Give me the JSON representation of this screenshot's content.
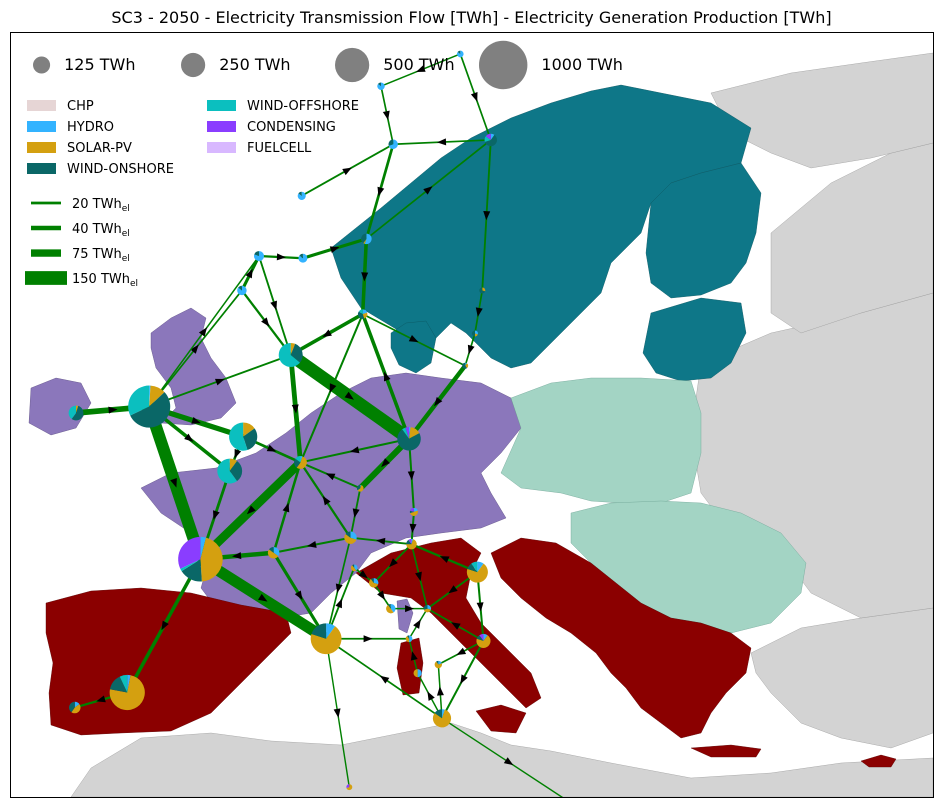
{
  "title": "SC3 - 2050 - Electricity Transmission Flow [TWh] - Electricity Generation Production [TWh]",
  "colors": {
    "sea": "#ffffff",
    "other_land": "#d3d3d3",
    "region_nordic": "#0e7788",
    "region_west": "#8b77bb",
    "region_east": "#a3d4c4",
    "region_south": "#8b0000",
    "flow": "#008000",
    "size_marker": "#808080"
  },
  "size_legend": [
    {
      "label": "125 TWh",
      "value": 125
    },
    {
      "label": "250 TWh",
      "value": 250
    },
    {
      "label": "500 TWh",
      "value": 500
    },
    {
      "label": "1000 TWh",
      "value": 1000
    }
  ],
  "technologies": [
    {
      "label": "CHP",
      "color": "#e6d5d5"
    },
    {
      "label": "HYDRO",
      "color": "#33b3ff"
    },
    {
      "label": "SOLAR-PV",
      "color": "#d4a010"
    },
    {
      "label": "WIND-ONSHORE",
      "color": "#0a6767"
    },
    {
      "label": "WIND-OFFSHORE",
      "color": "#0bbfbf"
    },
    {
      "label": "CONDENSING",
      "color": "#8a3dff"
    },
    {
      "label": "FUELCELL",
      "color": "#d8b8ff"
    }
  ],
  "flow_legend": [
    {
      "label": "20 TWh",
      "unit": "el",
      "value": 20
    },
    {
      "label": "40 TWh",
      "unit": "el",
      "value": 40
    },
    {
      "label": "75 TWh",
      "unit": "el",
      "value": 75
    },
    {
      "label": "150 TWh",
      "unit": "el",
      "value": 150
    }
  ],
  "nodes": [
    {
      "id": "ES",
      "lon": -3.8,
      "lat": 40.3,
      "total": 560,
      "mix": [
        0,
        0.03,
        0.75,
        0.15,
        0.07,
        0,
        0
      ]
    },
    {
      "id": "PT",
      "lon": -8.1,
      "lat": 39.6,
      "total": 60,
      "mix": [
        0,
        0.15,
        0.45,
        0.4,
        0,
        0,
        0
      ]
    },
    {
      "id": "FR",
      "lon": 2.2,
      "lat": 46.5,
      "total": 900,
      "mix": [
        0,
        0.04,
        0.45,
        0.17,
        0.02,
        0.32,
        0
      ]
    },
    {
      "id": "UK",
      "lon": -2.0,
      "lat": 53.6,
      "total": 800,
      "mix": [
        0,
        0.01,
        0.12,
        0.55,
        0.32,
        0,
        0
      ]
    },
    {
      "id": "IE",
      "lon": -8.0,
      "lat": 53.3,
      "total": 100,
      "mix": [
        0,
        0,
        0.05,
        0.55,
        0.4,
        0,
        0
      ]
    },
    {
      "id": "BE",
      "lon": 4.6,
      "lat": 50.6,
      "total": 280,
      "mix": [
        0,
        0,
        0.1,
        0.3,
        0.6,
        0,
        0
      ]
    },
    {
      "id": "NL",
      "lon": 5.7,
      "lat": 52.2,
      "total": 360,
      "mix": [
        0,
        0,
        0.15,
        0.3,
        0.55,
        0,
        0
      ]
    },
    {
      "id": "DK",
      "lon": 9.6,
      "lat": 56.0,
      "total": 260,
      "mix": [
        0,
        0,
        0.06,
        0.3,
        0.64,
        0,
        0
      ]
    },
    {
      "id": "DE",
      "lon": 10.4,
      "lat": 51.0,
      "total": 75,
      "mix": [
        0,
        0.05,
        0.55,
        0.25,
        0.15,
        0,
        0
      ]
    },
    {
      "id": "CH",
      "lon": 8.2,
      "lat": 46.8,
      "total": 60,
      "mix": [
        0,
        0.35,
        0.5,
        0.15,
        0,
        0,
        0
      ]
    },
    {
      "id": "IT",
      "lon": 12.5,
      "lat": 42.8,
      "total": 430,
      "mix": [
        0,
        0.1,
        0.7,
        0.2,
        0,
        0,
        0
      ]
    },
    {
      "id": "PL",
      "lon": 19.3,
      "lat": 52.1,
      "total": 250,
      "mix": [
        0,
        0.02,
        0.15,
        0.73,
        0.05,
        0.05,
        0
      ]
    },
    {
      "id": "CZ",
      "lon": 15.3,
      "lat": 49.8,
      "total": 20,
      "mix": [
        0,
        0.05,
        0.6,
        0.35,
        0,
        0,
        0
      ]
    },
    {
      "id": "AT",
      "lon": 14.5,
      "lat": 47.5,
      "total": 70,
      "mix": [
        0,
        0.3,
        0.55,
        0.15,
        0,
        0,
        0
      ]
    },
    {
      "id": "SK",
      "lon": 19.7,
      "lat": 48.7,
      "total": 30,
      "mix": [
        0,
        0.2,
        0.5,
        0.1,
        0,
        0.2,
        0
      ]
    },
    {
      "id": "HU",
      "lon": 19.5,
      "lat": 47.2,
      "total": 50,
      "mix": [
        0,
        0.05,
        0.7,
        0.15,
        0,
        0.1,
        0
      ]
    },
    {
      "id": "RO",
      "lon": 24.9,
      "lat": 45.9,
      "total": 200,
      "mix": [
        0,
        0.1,
        0.7,
        0.1,
        0.1,
        0,
        0
      ]
    },
    {
      "id": "BG",
      "lon": 25.4,
      "lat": 42.7,
      "total": 90,
      "mix": [
        0,
        0.1,
        0.7,
        0.1,
        0,
        0.1,
        0
      ]
    },
    {
      "id": "GR",
      "lon": 22.0,
      "lat": 39.1,
      "total": 150,
      "mix": [
        0,
        0.05,
        0.8,
        0.15,
        0,
        0,
        0
      ]
    },
    {
      "id": "SI",
      "lon": 14.8,
      "lat": 46.1,
      "total": 20,
      "mix": [
        0,
        0.4,
        0.5,
        0.1,
        0,
        0,
        0
      ]
    },
    {
      "id": "HR",
      "lon": 16.4,
      "lat": 45.4,
      "total": 40,
      "mix": [
        0,
        0.3,
        0.6,
        0.1,
        0,
        0,
        0
      ]
    },
    {
      "id": "BA",
      "lon": 17.8,
      "lat": 44.2,
      "total": 40,
      "mix": [
        0,
        0.4,
        0.5,
        0.1,
        0,
        0,
        0
      ]
    },
    {
      "id": "RS",
      "lon": 20.8,
      "lat": 44.2,
      "total": 25,
      "mix": [
        0,
        0.3,
        0.4,
        0.3,
        0,
        0,
        0
      ]
    },
    {
      "id": "ME",
      "lon": 19.3,
      "lat": 42.8,
      "total": 20,
      "mix": [
        0,
        0.5,
        0.4,
        0.1,
        0,
        0,
        0
      ]
    },
    {
      "id": "AL",
      "lon": 20.0,
      "lat": 41.2,
      "total": 30,
      "mix": [
        0,
        0.5,
        0.5,
        0,
        0,
        0,
        0
      ]
    },
    {
      "id": "MK",
      "lon": 21.7,
      "lat": 41.6,
      "total": 25,
      "mix": [
        0,
        0.2,
        0.7,
        0.1,
        0,
        0,
        0
      ]
    },
    {
      "id": "CY",
      "lon": 33.0,
      "lat": 35.0,
      "total": 15,
      "mix": [
        0,
        0,
        0.9,
        0.1,
        0,
        0,
        0
      ]
    },
    {
      "id": "MT",
      "lon": 14.4,
      "lat": 35.9,
      "total": 8,
      "mix": [
        0,
        0,
        0.7,
        0,
        0,
        0.3,
        0
      ]
    },
    {
      "id": "NO1",
      "lon": 5.6,
      "lat": 59.0,
      "total": 40,
      "mix": [
        0,
        0.85,
        0,
        0.15,
        0,
        0,
        0
      ]
    },
    {
      "id": "NO2",
      "lon": 7.0,
      "lat": 60.6,
      "total": 45,
      "mix": [
        0,
        0.8,
        0,
        0.2,
        0,
        0,
        0
      ]
    },
    {
      "id": "NO3",
      "lon": 10.6,
      "lat": 60.5,
      "total": 35,
      "mix": [
        0,
        0.85,
        0,
        0.15,
        0,
        0,
        0
      ]
    },
    {
      "id": "NO4",
      "lon": 10.5,
      "lat": 63.4,
      "total": 30,
      "mix": [
        0,
        0.85,
        0,
        0.15,
        0,
        0,
        0
      ]
    },
    {
      "id": "NO5",
      "lon": 17.0,
      "lat": 68.5,
      "total": 25,
      "mix": [
        0,
        0.85,
        0,
        0.15,
        0,
        0,
        0
      ]
    },
    {
      "id": "NO6",
      "lon": 23.5,
      "lat": 70.0,
      "total": 20,
      "mix": [
        0,
        0.85,
        0,
        0.15,
        0,
        0,
        0
      ]
    },
    {
      "id": "SE1",
      "lon": 18.0,
      "lat": 65.8,
      "total": 40,
      "mix": [
        0,
        0.7,
        0,
        0.3,
        0,
        0,
        0
      ]
    },
    {
      "id": "SE2",
      "lon": 15.8,
      "lat": 61.4,
      "total": 50,
      "mix": [
        0,
        0.55,
        0.05,
        0.4,
        0,
        0,
        0
      ]
    },
    {
      "id": "SE3",
      "lon": 15.5,
      "lat": 57.9,
      "total": 40,
      "mix": [
        0,
        0.2,
        0.25,
        0.4,
        0.15,
        0,
        0
      ]
    },
    {
      "id": "FI",
      "lon": 26.0,
      "lat": 66.0,
      "total": 70,
      "mix": [
        0,
        0.1,
        0,
        0.6,
        0.15,
        0.15,
        0
      ]
    },
    {
      "id": "EE",
      "lon": 25.3,
      "lat": 59.0,
      "total": 10,
      "mix": [
        0,
        0,
        0.3,
        0.7,
        0,
        0,
        0
      ]
    },
    {
      "id": "LV",
      "lon": 24.7,
      "lat": 57.0,
      "total": 10,
      "mix": [
        0,
        0.3,
        0.2,
        0.5,
        0,
        0,
        0
      ]
    },
    {
      "id": "LT",
      "lon": 23.9,
      "lat": 55.5,
      "total": 12,
      "mix": [
        0,
        0.1,
        0.3,
        0.6,
        0,
        0,
        0
      ]
    }
  ],
  "flows": [
    {
      "from": "UK",
      "to": "FR",
      "value": 130
    },
    {
      "from": "IE",
      "to": "UK",
      "value": 55
    },
    {
      "from": "FR",
      "to": "IT",
      "value": 120
    },
    {
      "from": "FR",
      "to": "ES",
      "value": 30
    },
    {
      "from": "ES",
      "to": "PT",
      "value": 15
    },
    {
      "from": "UK",
      "to": "NL",
      "value": 50
    },
    {
      "from": "UK",
      "to": "BE",
      "value": 30
    },
    {
      "from": "UK",
      "to": "NO1",
      "value": 8
    },
    {
      "from": "UK",
      "to": "DK",
      "value": 10
    },
    {
      "from": "UK",
      "to": "NO2",
      "value": 6
    },
    {
      "from": "DE",
      "to": "FR",
      "value": 90
    },
    {
      "from": "DK",
      "to": "PL",
      "value": 140
    },
    {
      "from": "DK",
      "to": "DE",
      "value": 45
    },
    {
      "from": "PL",
      "to": "SE3",
      "value": 30
    },
    {
      "from": "NL",
      "to": "BE",
      "value": 18
    },
    {
      "from": "NL",
      "to": "DE",
      "value": 20
    },
    {
      "from": "BE",
      "to": "FR",
      "value": 22
    },
    {
      "from": "CH",
      "to": "FR",
      "value": 40
    },
    {
      "from": "CH",
      "to": "DE",
      "value": 18
    },
    {
      "from": "CH",
      "to": "IT",
      "value": 25
    },
    {
      "from": "AT",
      "to": "DE",
      "value": 15
    },
    {
      "from": "AT",
      "to": "CH",
      "value": 12
    },
    {
      "from": "AT",
      "to": "IT",
      "value": 8
    },
    {
      "from": "CZ",
      "to": "DE",
      "value": 12
    },
    {
      "from": "CZ",
      "to": "AT",
      "value": 10
    },
    {
      "from": "PL",
      "to": "CZ",
      "value": 60
    },
    {
      "from": "PL",
      "to": "DE",
      "value": 12
    },
    {
      "from": "PL",
      "to": "SK",
      "value": 12
    },
    {
      "from": "SK",
      "to": "HU",
      "value": 12
    },
    {
      "from": "HU",
      "to": "AT",
      "value": 10
    },
    {
      "from": "HU",
      "to": "HR",
      "value": 10
    },
    {
      "from": "HU",
      "to": "RS",
      "value": 8
    },
    {
      "from": "RO",
      "to": "HU",
      "value": 15
    },
    {
      "from": "RO",
      "to": "RS",
      "value": 10
    },
    {
      "from": "RO",
      "to": "BG",
      "value": 12
    },
    {
      "from": "BG",
      "to": "GR",
      "value": 12
    },
    {
      "from": "BG",
      "to": "MK",
      "value": 8
    },
    {
      "from": "BG",
      "to": "RS",
      "value": 8
    },
    {
      "from": "GR",
      "to": "IT",
      "value": 8
    },
    {
      "from": "GR",
      "to": "AL",
      "value": 6
    },
    {
      "from": "GR",
      "to": "MK",
      "value": 6
    },
    {
      "from": "GR",
      "to": "CY",
      "value": 5
    },
    {
      "from": "IT",
      "to": "SI",
      "value": 10
    },
    {
      "from": "IT",
      "to": "ME",
      "value": 8
    },
    {
      "from": "IT",
      "to": "MT",
      "value": 5
    },
    {
      "from": "SI",
      "to": "HR",
      "value": 8
    },
    {
      "from": "HR",
      "to": "BA",
      "value": 8
    },
    {
      "from": "BA",
      "to": "RS",
      "value": 6
    },
    {
      "from": "ME",
      "to": "RS",
      "value": 6
    },
    {
      "from": "AL",
      "to": "ME",
      "value": 6
    },
    {
      "from": "NO1",
      "to": "NO2",
      "value": 25
    },
    {
      "from": "NO2",
      "to": "NO3",
      "value": 15
    },
    {
      "from": "NO1",
      "to": "DK",
      "value": 15
    },
    {
      "from": "NO2",
      "to": "DK",
      "value": 10
    },
    {
      "from": "NO3",
      "to": "SE2",
      "value": 25
    },
    {
      "from": "NO4",
      "to": "SE1",
      "value": 10
    },
    {
      "from": "NO5",
      "to": "SE1",
      "value": 8
    },
    {
      "from": "NO6",
      "to": "FI",
      "value": 8
    },
    {
      "from": "NO6",
      "to": "NO5",
      "value": 6
    },
    {
      "from": "SE1",
      "to": "SE2",
      "value": 20
    },
    {
      "from": "SE2",
      "to": "SE3",
      "value": 30
    },
    {
      "from": "SE3",
      "to": "DK",
      "value": 30
    },
    {
      "from": "SE3",
      "to": "DE",
      "value": 12
    },
    {
      "from": "SE3",
      "to": "LT",
      "value": 8
    },
    {
      "from": "FI",
      "to": "SE1",
      "value": 8
    },
    {
      "from": "FI",
      "to": "EE",
      "value": 10
    },
    {
      "from": "EE",
      "to": "LV",
      "value": 8
    },
    {
      "from": "LV",
      "to": "LT",
      "value": 8
    },
    {
      "from": "LT",
      "to": "PL",
      "value": 40
    },
    {
      "from": "SE2",
      "to": "FI",
      "value": 8
    }
  ]
}
